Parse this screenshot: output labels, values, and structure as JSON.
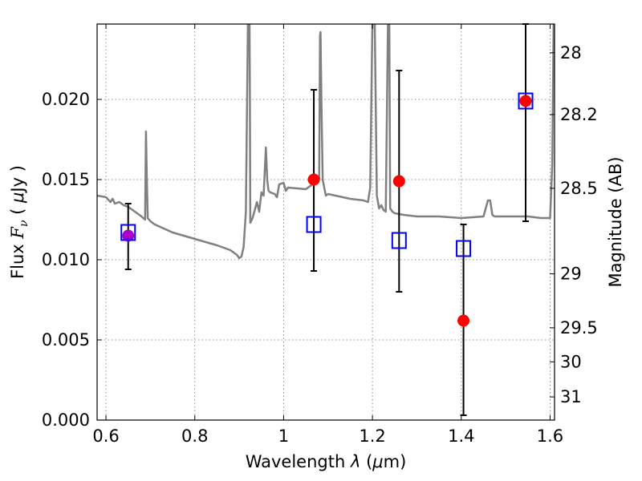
{
  "chart_data": {
    "type": "scatter",
    "xlabel": "Wavelength  λ (μm)",
    "ylabel": "Flux  F_ν  ( μJy )",
    "ylabel_right": "Magnitude (AB)",
    "xlim": [
      0.58,
      1.61
    ],
    "ylim": [
      0.0,
      0.0247
    ],
    "xticks": [
      0.6,
      0.8,
      1.0,
      1.2,
      1.4,
      1.6
    ],
    "xtick_labels": [
      "0.6",
      "0.8",
      "1",
      "1.2",
      "1.4",
      "1.6"
    ],
    "yticks": [
      0.0,
      0.005,
      0.01,
      0.015,
      0.02
    ],
    "ytick_labels": [
      "0.000",
      "0.005",
      "0.010",
      "0.015",
      "0.020"
    ],
    "right_ticks": [
      "28",
      "28.2",
      "28.5",
      "29",
      "29.5",
      "30",
      "31"
    ],
    "grid": true,
    "colors": {
      "model": "#808080",
      "model_points": "#0000ff",
      "observed": "#ff0000",
      "observed_first": "#aa00cc",
      "errorbar": "#000000"
    },
    "model_spectrum": {
      "x": [
        0.58,
        0.6,
        0.61,
        0.615,
        0.62,
        0.63,
        0.64,
        0.65,
        0.66,
        0.67,
        0.68,
        0.688,
        0.69,
        0.692,
        0.694,
        0.7,
        0.71,
        0.75,
        0.8,
        0.85,
        0.88,
        0.895,
        0.9,
        0.905,
        0.91,
        0.915,
        0.92,
        0.923,
        0.924,
        0.925,
        0.93,
        0.94,
        0.945,
        0.95,
        0.955,
        0.96,
        0.963,
        0.966,
        0.97,
        0.98,
        0.985,
        0.99,
        1.0,
        1.005,
        1.01,
        1.05,
        1.08,
        1.082,
        1.083,
        1.085,
        1.088,
        1.095,
        1.1,
        1.15,
        1.18,
        1.19,
        1.195,
        1.2,
        1.205,
        1.21,
        1.215,
        1.22,
        1.225,
        1.23,
        1.235,
        1.238,
        1.24,
        1.245,
        1.25,
        1.27,
        1.3,
        1.35,
        1.4,
        1.45,
        1.46,
        1.465,
        1.47,
        1.475,
        1.5,
        1.55,
        1.58,
        1.6,
        1.605,
        1.608,
        1.61
      ],
      "y": [
        0.014,
        0.0139,
        0.0136,
        0.0138,
        0.0135,
        0.0136,
        0.0134,
        0.0133,
        0.0131,
        0.0129,
        0.0127,
        0.0125,
        0.018,
        0.015,
        0.0126,
        0.0124,
        0.0122,
        0.0117,
        0.0113,
        0.0109,
        0.0106,
        0.0103,
        0.0101,
        0.0102,
        0.0108,
        0.013,
        0.026,
        0.026,
        0.02,
        0.0123,
        0.0126,
        0.0136,
        0.013,
        0.0142,
        0.014,
        0.017,
        0.015,
        0.0143,
        0.0142,
        0.0141,
        0.0139,
        0.0147,
        0.0148,
        0.0143,
        0.0145,
        0.0144,
        0.015,
        0.024,
        0.0242,
        0.02,
        0.015,
        0.014,
        0.0141,
        0.0138,
        0.0137,
        0.0136,
        0.0145,
        0.025,
        0.025,
        0.014,
        0.0132,
        0.0134,
        0.0131,
        0.013,
        0.025,
        0.025,
        0.0132,
        0.013,
        0.0129,
        0.0128,
        0.0127,
        0.0127,
        0.0126,
        0.0127,
        0.0137,
        0.0137,
        0.0128,
        0.0127,
        0.0127,
        0.0127,
        0.0126,
        0.0126,
        0.016,
        0.025,
        0.025
      ]
    },
    "model_points": {
      "x": [
        0.65,
        1.068,
        1.26,
        1.405,
        1.545
      ],
      "y": [
        0.0117,
        0.0122,
        0.0112,
        0.0107,
        0.0199
      ]
    },
    "observed": {
      "x": [
        0.65,
        1.068,
        1.26,
        1.405,
        1.545
      ],
      "y": [
        0.0115,
        0.015,
        0.0149,
        0.0062,
        0.0199
      ],
      "yerr_low": [
        0.0094,
        0.0093,
        0.008,
        0.0003,
        0.0124
      ],
      "yerr_high": [
        0.0135,
        0.0206,
        0.0218,
        0.0122,
        0.0247
      ]
    }
  }
}
